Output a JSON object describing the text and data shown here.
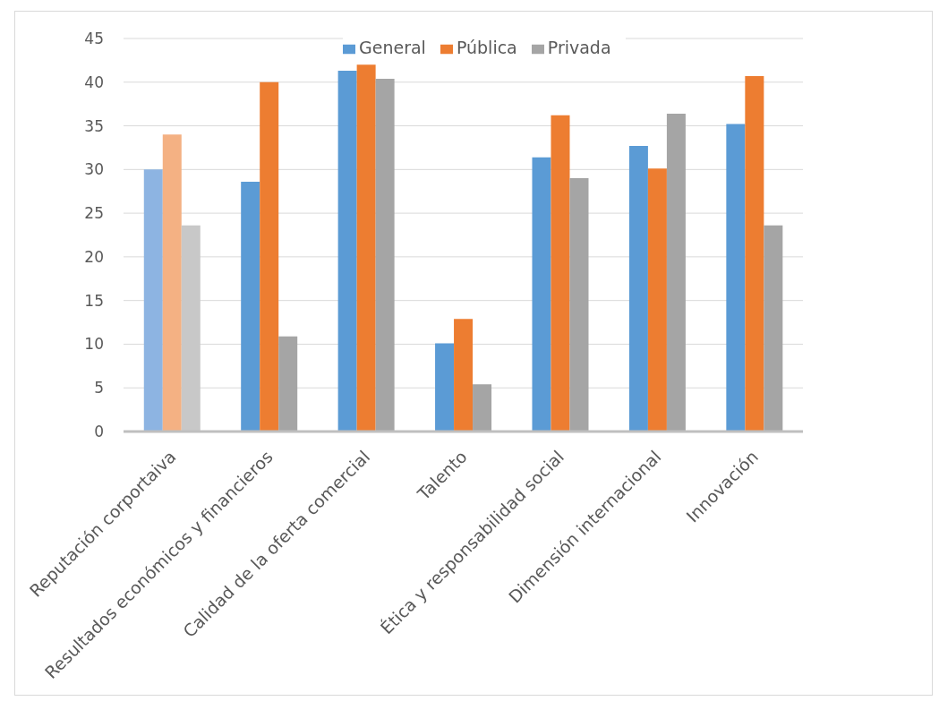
{
  "chart_data": {
    "type": "bar",
    "categories": [
      "Reputación corportaiva",
      "Resultados económicos y financieros",
      "Calidad de la oferta comercial",
      "Talento",
      "Ética y responsabilidad social",
      "Dimensión internacional",
      "Innovación"
    ],
    "series": [
      {
        "name": "General",
        "color": "#5b9bd5",
        "colors": [
          "#8db4e2",
          "#5b9bd5",
          "#5b9bd5",
          "#5b9bd5",
          "#5b9bd5",
          "#5b9bd5",
          "#5b9bd5"
        ],
        "values": [
          30,
          28.6,
          41.3,
          10.1,
          31.4,
          32.7,
          35.2
        ]
      },
      {
        "name": "Pública",
        "color": "#ed7d31",
        "colors": [
          "#f4b183",
          "#ed7d31",
          "#ed7d31",
          "#ed7d31",
          "#ed7d31",
          "#ed7d31",
          "#ed7d31"
        ],
        "values": [
          34,
          40,
          42,
          12.9,
          36.2,
          30.1,
          40.7
        ]
      },
      {
        "name": "Privada",
        "color": "#a5a5a5",
        "colors": [
          "#c8c8c8",
          "#a5a5a5",
          "#a5a5a5",
          "#a5a5a5",
          "#a5a5a5",
          "#a5a5a5",
          "#a5a5a5"
        ],
        "values": [
          23.6,
          10.9,
          40.4,
          5.4,
          29,
          36.4,
          23.6
        ]
      }
    ],
    "ylim": [
      0,
      45
    ],
    "yticks": [
      0,
      5,
      10,
      15,
      20,
      25,
      30,
      35,
      40,
      45
    ],
    "grid": "y",
    "legend": "top"
  }
}
